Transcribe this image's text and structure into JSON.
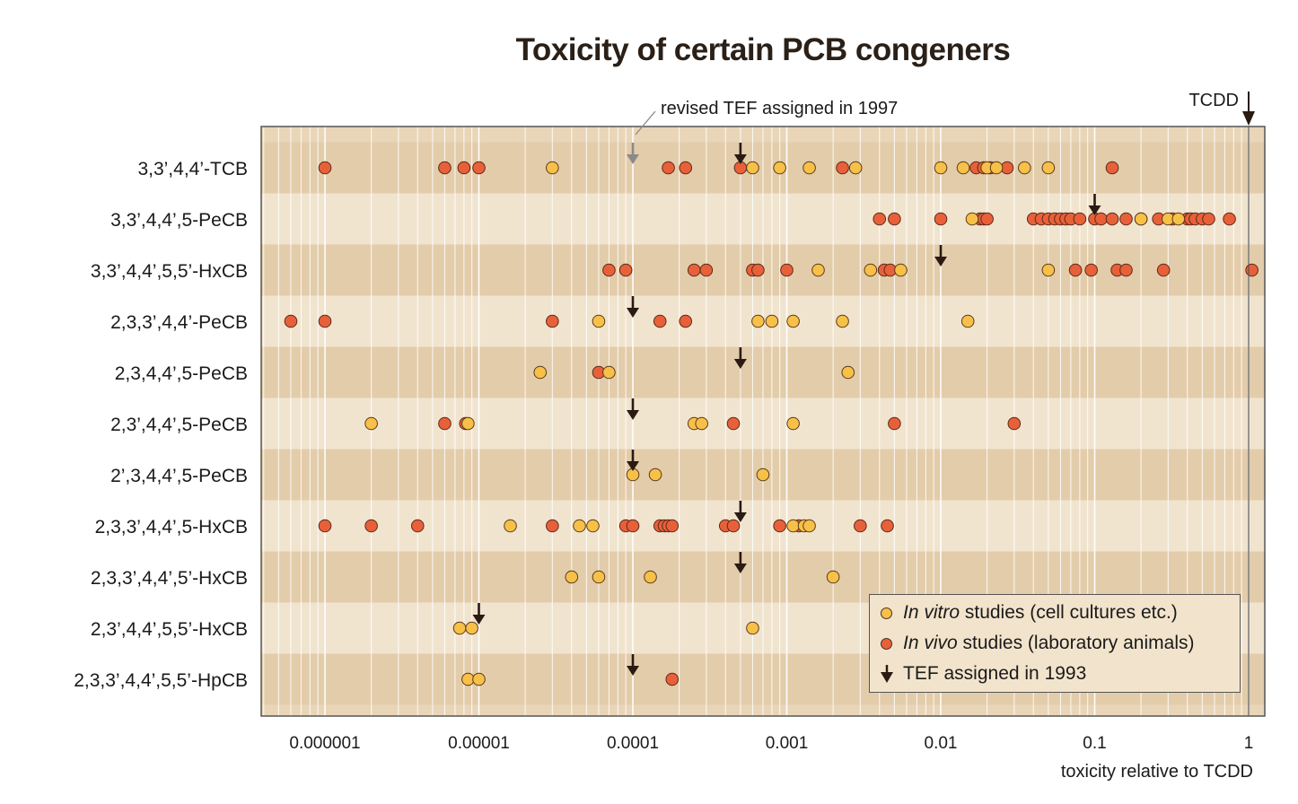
{
  "title": "Toxicity of certain PCB congeners",
  "chart_data": {
    "type": "scatter",
    "title": "Toxicity of certain PCB congeners",
    "xlabel": "toxicity relative to TCDD",
    "xscale": "log",
    "xlim": [
      5e-07,
      1.2
    ],
    "xticks": [
      "0.000001",
      "0.00001",
      "0.0001",
      "0.001",
      "0.01",
      "0.1",
      "1"
    ],
    "annotation_tcdd": "TCDD",
    "annotation_revised": "revised TEF assigned in 1997",
    "rows": [
      {
        "name": "3,3’,4,4’-TCB",
        "invitro": [
          3e-05,
          0.0006,
          0.0009,
          0.0014,
          0.0028,
          0.01,
          0.014,
          0.02,
          0.023,
          0.035,
          0.05
        ],
        "invivo": [
          1e-06,
          6e-06,
          8e-06,
          1e-05,
          0.00017,
          0.00022,
          0.0005,
          0.0023,
          0.017,
          0.019,
          0.021,
          0.027,
          0.13
        ],
        "tef1993": 0.0005,
        "tef1997": 0.0001
      },
      {
        "name": "3,3’,4,4’,5-PeCB",
        "invitro": [
          0.016,
          0.2,
          0.3,
          0.35
        ],
        "invivo": [
          0.004,
          0.005,
          0.01,
          0.018,
          0.019,
          0.02,
          0.04,
          0.045,
          0.05,
          0.055,
          0.06,
          0.065,
          0.07,
          0.08,
          0.1,
          0.11,
          0.13,
          0.16,
          0.2,
          0.26,
          0.32,
          0.4,
          0.42,
          0.45,
          0.5,
          0.55,
          0.75
        ],
        "tef1993": 0.1
      },
      {
        "name": "3,3’,4,4’,5,5’-HxCB",
        "invitro": [
          0.0016,
          0.0035,
          0.0055,
          0.05
        ],
        "invivo": [
          7e-05,
          9e-05,
          0.00025,
          0.0003,
          0.0006,
          0.00065,
          0.001,
          0.0043,
          0.0047,
          0.075,
          0.095,
          0.14,
          0.16,
          0.28,
          1.05
        ],
        "tef1993": 0.01
      },
      {
        "name": "2,3,3’,4,4’-PeCB",
        "invitro": [
          6e-05,
          0.00065,
          0.0008,
          0.0011,
          0.0023,
          0.015
        ],
        "invivo": [
          6e-07,
          1e-06,
          3e-05,
          0.00015,
          0.00022
        ],
        "tef1993": 0.0001
      },
      {
        "name": "2,3,4,4’,5-PeCB",
        "invitro": [
          2.5e-05,
          7e-05,
          0.0025
        ],
        "invivo": [
          6e-05
        ],
        "tef1993": 0.0005
      },
      {
        "name": "2,3’,4,4’,5-PeCB",
        "invitro": [
          2e-06,
          8.5e-06,
          0.00025,
          0.00028,
          0.0011
        ],
        "invivo": [
          6e-06,
          8.2e-06,
          0.00045,
          0.005,
          0.03
        ],
        "tef1993": 0.0001
      },
      {
        "name": "2’,3,4,4’,5-PeCB",
        "invitro": [
          0.0001,
          0.00014,
          0.0007
        ],
        "invivo": [],
        "tef1993": 0.0001
      },
      {
        "name": "2,3,3’,4,4’,5-HxCB",
        "invitro": [
          1.6e-05,
          4.5e-05,
          5.5e-05,
          0.0011,
          0.0013,
          0.0014
        ],
        "invivo": [
          1e-06,
          2e-06,
          4e-06,
          3e-05,
          9e-05,
          0.0001,
          0.00015,
          0.00016,
          0.00017,
          0.00018,
          0.0004,
          0.00045,
          0.0009,
          0.0012,
          0.003,
          0.0045
        ],
        "tef1993": 0.0005
      },
      {
        "name": "2,3,3’,4,4’,5’-HxCB",
        "invitro": [
          4e-05,
          6e-05,
          0.00013,
          0.002
        ],
        "invivo": [],
        "tef1993": 0.0005
      },
      {
        "name": "2,3’,4,4’,5,5’-HxCB",
        "invitro": [
          7.5e-06,
          9e-06,
          0.0006
        ],
        "invivo": [],
        "tef1993": 1e-05
      },
      {
        "name": "2,3,3’,4,4’,5,5’-HpCB",
        "invitro": [
          8.5e-06,
          1e-05
        ],
        "invivo": [
          0.00018
        ],
        "tef1993": 0.0001
      }
    ],
    "legend": {
      "invitro_italic": "In vitro",
      "invitro_rest": " studies (cell cultures etc.)",
      "invivo_italic": "In vivo",
      "invivo_rest": " studies (laboratory animals)",
      "tef": "TEF assigned in 1993",
      "placement": "bottom-right"
    },
    "colors": {
      "invitro": "#f7c048",
      "invivo": "#e8603a",
      "arrow": "#2a1a12",
      "arrow1997": "#8a8a8a"
    }
  }
}
